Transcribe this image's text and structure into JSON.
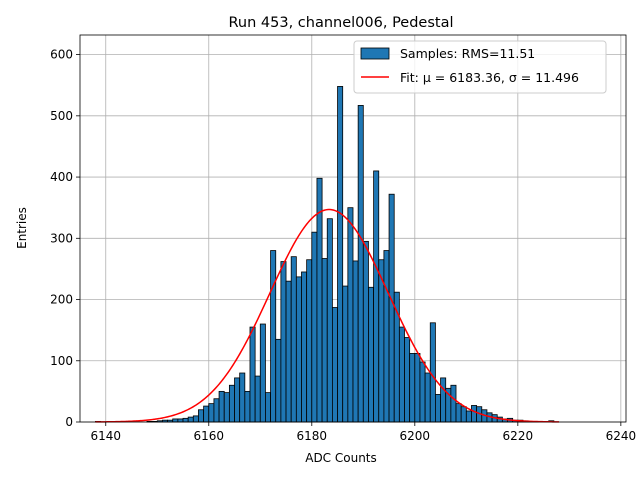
{
  "chart_data": {
    "type": "bar",
    "title": "Run 453, channel006, Pedestal",
    "xlabel": "ADC Counts",
    "ylabel": "Entries",
    "xlim": [
      6135,
      6241
    ],
    "ylim": [
      0,
      632
    ],
    "xticks": [
      6140,
      6160,
      6180,
      6200,
      6220,
      6240
    ],
    "yticks": [
      0,
      100,
      200,
      300,
      400,
      500,
      600
    ],
    "grid": true,
    "legend_position": "top-right",
    "colors": {
      "bars": "#1f77b4",
      "bar_edge": "#000000",
      "fit": "#ff0000",
      "grid": "#b0b0b0"
    },
    "legend": [
      {
        "label": "Samples: RMS=11.51",
        "kind": "patch"
      },
      {
        "label": "Fit: μ = 6183.36, σ = 11.496",
        "kind": "line"
      }
    ],
    "histogram": {
      "bin_start": 6138,
      "bin_width": 1,
      "values": [
        1,
        0,
        0,
        0,
        0,
        0,
        0,
        0,
        0,
        0,
        1,
        1,
        2,
        3,
        3,
        5,
        5,
        6,
        8,
        10,
        20,
        26,
        30,
        38,
        50,
        48,
        60,
        72,
        80,
        50,
        155,
        75,
        160,
        48,
        280,
        135,
        262,
        230,
        270,
        237,
        245,
        265,
        310,
        398,
        267,
        332,
        187,
        548,
        222,
        350,
        263,
        517,
        295,
        220,
        410,
        265,
        280,
        372,
        212,
        155,
        138,
        112,
        112,
        98,
        80,
        162,
        45,
        72,
        55,
        60,
        30,
        25,
        18,
        27,
        25,
        20,
        15,
        12,
        8,
        5,
        6,
        3,
        3,
        2,
        1,
        1,
        0,
        0,
        2
      ]
    },
    "fit": {
      "type": "gaussian",
      "mu": 6183.36,
      "sigma": 11.496,
      "amplitude": 347,
      "x_range": [
        6138,
        6228
      ]
    }
  }
}
